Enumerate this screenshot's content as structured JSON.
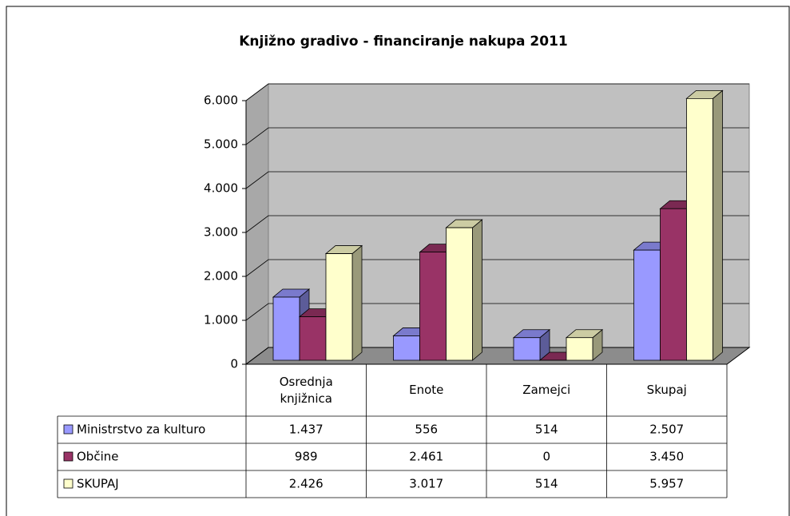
{
  "chart_data": {
    "type": "bar3d",
    "title": "Knjižno gradivo - financiranje nakupa 2011",
    "categories": [
      "Osrednja knjižnica",
      "Enote",
      "Zamejci",
      "Skupaj"
    ],
    "series": [
      {
        "name": "Ministrstvo za kulturo",
        "color": "#9999ff",
        "values": [
          1437,
          556,
          514,
          2507
        ],
        "value_labels": [
          "1.437",
          "556",
          "514",
          "2.507"
        ]
      },
      {
        "name": "Občine",
        "color": "#993366",
        "values": [
          989,
          2461,
          0,
          3450
        ],
        "value_labels": [
          "989",
          "2.461",
          "0",
          "3.450"
        ]
      },
      {
        "name": "SKUPAJ",
        "color": "#ffffcc",
        "values": [
          2426,
          3017,
          514,
          5957
        ],
        "value_labels": [
          "2.426",
          "3.017",
          "514",
          "5.957"
        ]
      }
    ],
    "ylim": [
      0,
      6000
    ],
    "yticks": [
      0,
      {
        "value": 1000,
        "label": "1.000"
      },
      {
        "value": 2000,
        "label": "2.000"
      },
      {
        "value": 3000,
        "label": "3.000"
      },
      {
        "value": 4000,
        "label": "4.000"
      },
      {
        "value": 5000,
        "label": "5.000"
      },
      {
        "value": 6000,
        "label": "6.000"
      }
    ],
    "grid": true,
    "data_table": true
  }
}
